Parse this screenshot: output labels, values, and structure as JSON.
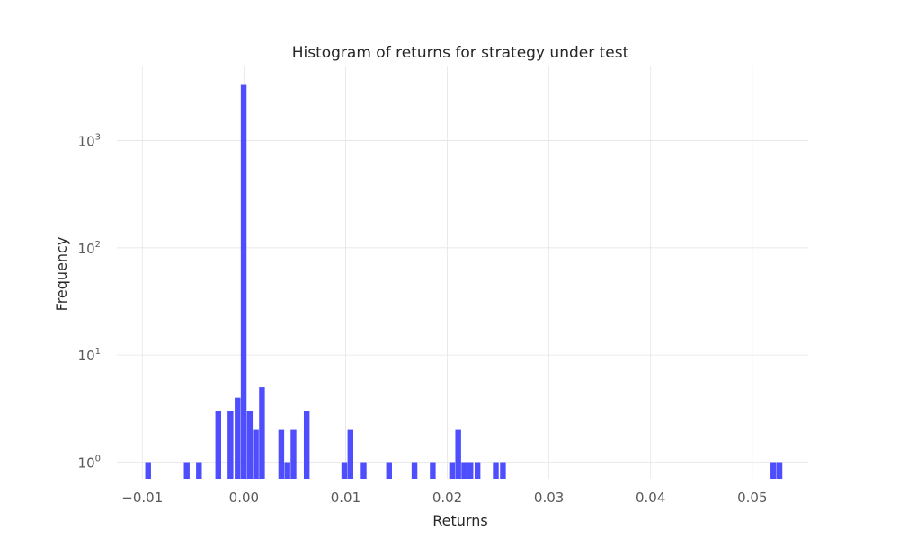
{
  "chart_data": {
    "type": "bar",
    "title": "Histogram of returns for strategy under test",
    "xlabel": "Returns",
    "ylabel": "Frequency",
    "xlim": [
      -0.0125,
      0.0555
    ],
    "ylim": [
      0.7,
      5000
    ],
    "yscale": "log",
    "grid": true,
    "xticks": [
      {
        "value": -0.01,
        "label": "−0.01"
      },
      {
        "value": 0.0,
        "label": "0.00"
      },
      {
        "value": 0.01,
        "label": "0.01"
      },
      {
        "value": 0.02,
        "label": "0.02"
      },
      {
        "value": 0.03,
        "label": "0.03"
      },
      {
        "value": 0.04,
        "label": "0.04"
      },
      {
        "value": 0.05,
        "label": "0.05"
      }
    ],
    "yticks": [
      {
        "value": 1,
        "base": "10",
        "exp": "0"
      },
      {
        "value": 10,
        "base": "10",
        "exp": "1"
      },
      {
        "value": 100,
        "base": "10",
        "exp": "2"
      },
      {
        "value": 1000,
        "base": "10",
        "exp": "3"
      }
    ],
    "bin_width": 0.00062,
    "bars": [
      {
        "x": -0.0094,
        "count": 1
      },
      {
        "x": -0.0056,
        "count": 1
      },
      {
        "x": -0.0044,
        "count": 1
      },
      {
        "x": -0.0025,
        "count": 3
      },
      {
        "x": -0.0013,
        "count": 3
      },
      {
        "x": -0.0006,
        "count": 4
      },
      {
        "x": 0.0,
        "count": 3300
      },
      {
        "x": 0.0006,
        "count": 3
      },
      {
        "x": 0.0012,
        "count": 2
      },
      {
        "x": 0.0018,
        "count": 5
      },
      {
        "x": 0.0037,
        "count": 2
      },
      {
        "x": 0.0043,
        "count": 1
      },
      {
        "x": 0.0049,
        "count": 2
      },
      {
        "x": 0.0062,
        "count": 3
      },
      {
        "x": 0.0099,
        "count": 1
      },
      {
        "x": 0.0105,
        "count": 2
      },
      {
        "x": 0.0118,
        "count": 1
      },
      {
        "x": 0.0143,
        "count": 1
      },
      {
        "x": 0.0168,
        "count": 1
      },
      {
        "x": 0.0186,
        "count": 1
      },
      {
        "x": 0.0205,
        "count": 1
      },
      {
        "x": 0.0211,
        "count": 2
      },
      {
        "x": 0.0217,
        "count": 1
      },
      {
        "x": 0.0223,
        "count": 1
      },
      {
        "x": 0.023,
        "count": 1
      },
      {
        "x": 0.0248,
        "count": 1
      },
      {
        "x": 0.0255,
        "count": 1
      },
      {
        "x": 0.0521,
        "count": 1
      },
      {
        "x": 0.0527,
        "count": 1
      }
    ]
  }
}
